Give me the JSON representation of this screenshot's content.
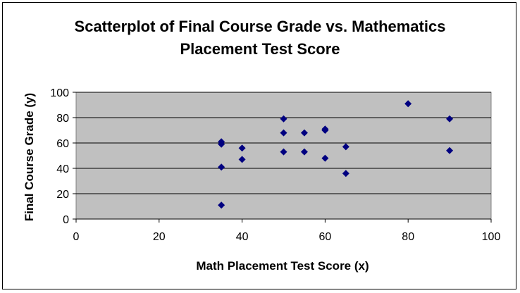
{
  "chart_data": {
    "type": "scatter",
    "title": [
      "Scatterplot of Final Course Grade vs. Mathematics",
      "Placement Test Score"
    ],
    "xlabel": "Math Placement Test Score (x)",
    "ylabel": "Final Course Grade (y)",
    "xlim": [
      0,
      100
    ],
    "ylim": [
      0,
      100
    ],
    "x_ticks": [
      "0",
      "20",
      "40",
      "60",
      "80",
      "100"
    ],
    "y_ticks": [
      "0",
      "20",
      "40",
      "60",
      "80",
      "100"
    ],
    "grid": "horizontal",
    "legend": "none",
    "colors": {
      "plot_background": "#c0c0c0",
      "marker": "#000080",
      "gridline": "#000000"
    },
    "points": [
      {
        "x": 35,
        "y": 11
      },
      {
        "x": 35,
        "y": 41
      },
      {
        "x": 35,
        "y": 59
      },
      {
        "x": 35,
        "y": 61
      },
      {
        "x": 40,
        "y": 47
      },
      {
        "x": 40,
        "y": 56
      },
      {
        "x": 50,
        "y": 53
      },
      {
        "x": 50,
        "y": 68
      },
      {
        "x": 50,
        "y": 79
      },
      {
        "x": 55,
        "y": 53
      },
      {
        "x": 55,
        "y": 68
      },
      {
        "x": 60,
        "y": 48
      },
      {
        "x": 60,
        "y": 70
      },
      {
        "x": 60,
        "y": 71
      },
      {
        "x": 65,
        "y": 36
      },
      {
        "x": 65,
        "y": 57
      },
      {
        "x": 80,
        "y": 91
      },
      {
        "x": 90,
        "y": 54
      },
      {
        "x": 90,
        "y": 79
      }
    ]
  }
}
